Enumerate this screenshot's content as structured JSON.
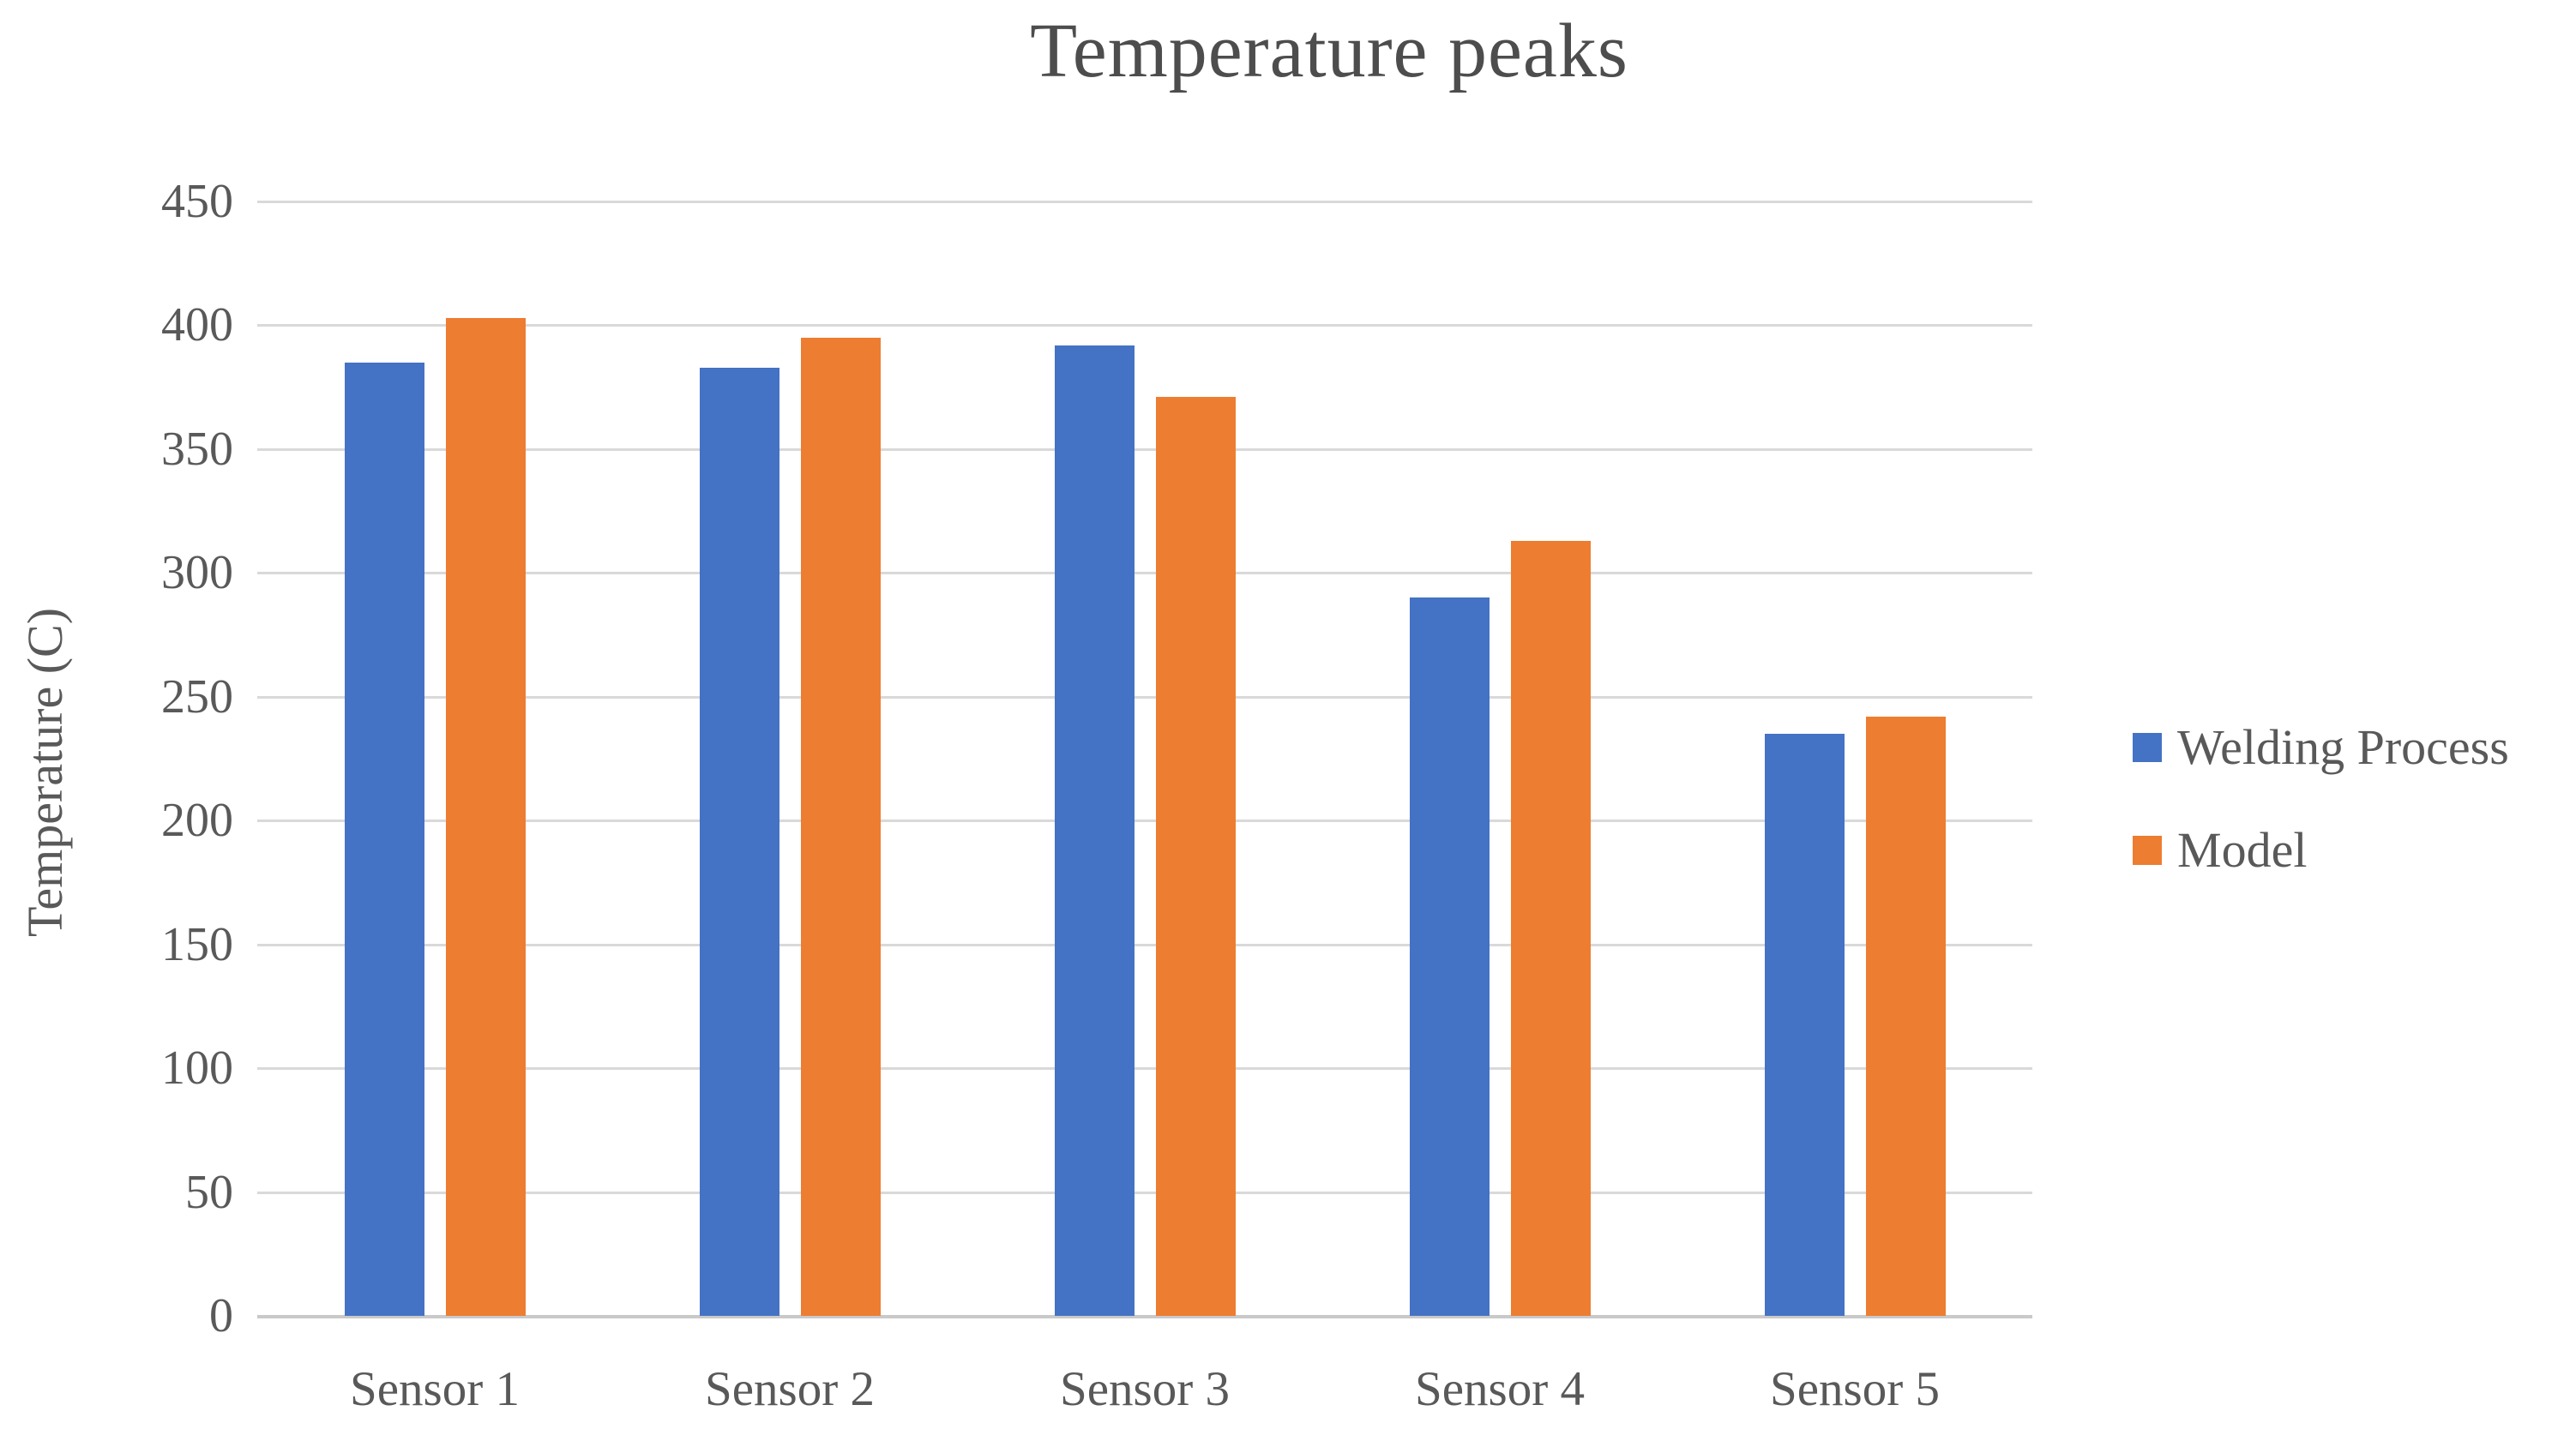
{
  "chart_data": {
    "type": "bar",
    "title": "Temperature peaks",
    "ylabel": "Temperature (C)",
    "xlabel": "",
    "categories": [
      "Sensor 1",
      "Sensor 2",
      "Sensor 3",
      "Sensor 4",
      "Sensor 5"
    ],
    "series": [
      {
        "name": "Welding Process",
        "color": "#4472C4",
        "values": [
          385,
          383,
          392,
          290,
          235
        ]
      },
      {
        "name": "Model",
        "color": "#ED7D31",
        "values": [
          403,
          395,
          371,
          313,
          242
        ]
      }
    ],
    "ylim": [
      0,
      450
    ],
    "yticks": [
      0,
      50,
      100,
      150,
      200,
      250,
      300,
      350,
      400,
      450
    ],
    "grid": true,
    "legend_position": "right",
    "legend_labels": [
      "Welding Process",
      "Model"
    ]
  },
  "colors": {
    "background": "#FFFFFF",
    "text": "#595959",
    "title_text": "#4D4D4D",
    "gridline": "#D9D9D9",
    "axis_line": "#C9C9C9",
    "series_blue": "#4472C4",
    "series_orange": "#ED7D31"
  }
}
